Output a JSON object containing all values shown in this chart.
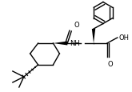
{
  "bg_color": "#ffffff",
  "line_color": "#000000",
  "lw": 1.0,
  "figsize": [
    1.65,
    1.16
  ],
  "dpi": 100,
  "xlim": [
    0,
    165
  ],
  "ylim": [
    0,
    116
  ]
}
